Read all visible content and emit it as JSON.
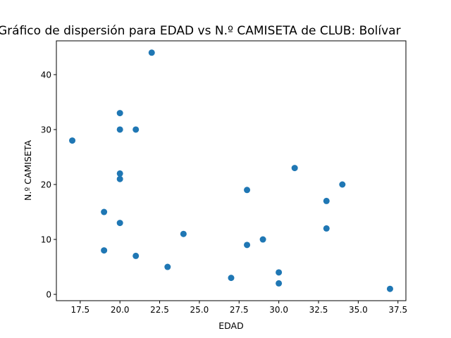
{
  "chart_data": {
    "type": "scatter",
    "title": "Gráfico de dispersión para EDAD vs N.º CAMISETA de CLUB: Bolívar",
    "xlabel": "EDAD",
    "ylabel": "N.º CAMISETA",
    "xlim": [
      16.0,
      38.0
    ],
    "ylim": [
      -1.15,
      46.15
    ],
    "xticks": [
      17.5,
      20.0,
      22.5,
      25.0,
      27.5,
      30.0,
      32.5,
      35.0,
      37.5
    ],
    "xtick_labels": [
      "17.5",
      "20.0",
      "22.5",
      "25.0",
      "27.5",
      "30.0",
      "32.5",
      "35.0",
      "37.5"
    ],
    "yticks": [
      0,
      10,
      20,
      30,
      40
    ],
    "ytick_labels": [
      "0",
      "10",
      "20",
      "30",
      "40"
    ],
    "grid": false,
    "marker_color": "#1f77b4",
    "points": [
      {
        "x": 22,
        "y": 44
      },
      {
        "x": 20,
        "y": 33
      },
      {
        "x": 20,
        "y": 30
      },
      {
        "x": 21,
        "y": 30
      },
      {
        "x": 17,
        "y": 28
      },
      {
        "x": 20,
        "y": 22
      },
      {
        "x": 20,
        "y": 21
      },
      {
        "x": 31,
        "y": 23
      },
      {
        "x": 34,
        "y": 20
      },
      {
        "x": 28,
        "y": 19
      },
      {
        "x": 33,
        "y": 17
      },
      {
        "x": 19,
        "y": 15
      },
      {
        "x": 20,
        "y": 13
      },
      {
        "x": 33,
        "y": 12
      },
      {
        "x": 24,
        "y": 11
      },
      {
        "x": 29,
        "y": 10
      },
      {
        "x": 28,
        "y": 9
      },
      {
        "x": 19,
        "y": 8
      },
      {
        "x": 21,
        "y": 7
      },
      {
        "x": 23,
        "y": 5
      },
      {
        "x": 30,
        "y": 4
      },
      {
        "x": 27,
        "y": 3
      },
      {
        "x": 30,
        "y": 2
      },
      {
        "x": 37,
        "y": 1
      }
    ]
  }
}
